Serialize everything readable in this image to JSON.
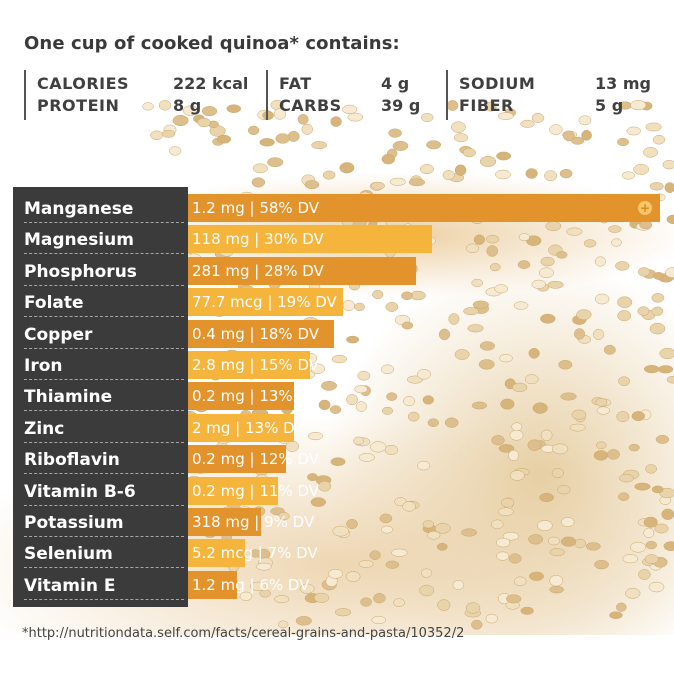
{
  "headline": "One cup of cooked quinoa* contains:",
  "summary": [
    {
      "label_1": "CALORIES",
      "value_1": "222 kcal",
      "label_2": "PROTEIN",
      "value_2": "8 g"
    },
    {
      "label_1": "FAT",
      "value_1": "4 g",
      "label_2": "CARBS",
      "value_2": "39 g"
    },
    {
      "label_1": "SODIUM",
      "value_1": "13 mg",
      "label_2": "FIBER",
      "value_2": "5 g"
    }
  ],
  "colors": {
    "label_column": "#3b3b3b",
    "bar_dark": "#e3932b",
    "bar_light": "#f5b43c",
    "text": "#ffffff"
  },
  "icon": "plus-circle-icon",
  "chart_data": {
    "type": "bar",
    "orientation": "horizontal",
    "unit": "% DV",
    "xlim": [
      0,
      58
    ],
    "categories": [
      "Manganese",
      "Magnesium",
      "Phosphorus",
      "Folate",
      "Copper",
      "Iron",
      "Thiamine",
      "Zinc",
      "Riboflavin",
      "Vitamin B-6",
      "Potassium",
      "Selenium",
      "Vitamin E"
    ],
    "values": [
      58,
      30,
      28,
      19,
      18,
      15,
      13,
      13,
      12,
      11,
      9,
      7,
      6
    ],
    "data_labels": [
      "1.2 mg | 58% DV",
      "118 mg | 30% DV",
      "281 mg | 28% DV",
      "77.7 mcg | 19% DV",
      "0.4 mg | 18% DV",
      "2.8 mg | 15% DV",
      "0.2 mg | 13% DV",
      "2 mg | 13% DV",
      "0.2 mg | 12% DV",
      "0.2 mg | 11% DV",
      "318 mg | 9% DV",
      "5.2 mcg | 7% DV",
      "1.2 mg | 6% DV"
    ]
  },
  "footnote": "*http://nutritiondata.self.com/facts/cereal-grains-and-pasta/10352/2"
}
